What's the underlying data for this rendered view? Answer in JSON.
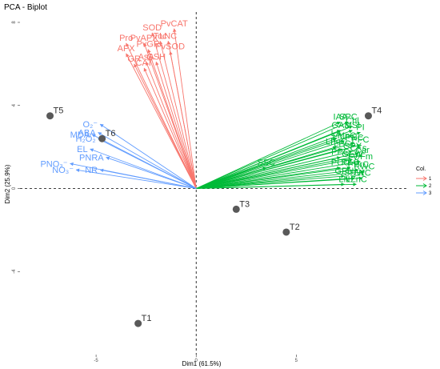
{
  "chart_data": {
    "type": "scatter",
    "title": "PCA - Biplot",
    "xlabel": "Dim1 (61.5%)",
    "ylabel": "Dim2 (25.9%)",
    "xlim": [
      -8.8,
      10.5
    ],
    "ylim": [
      -8.0,
      8.5
    ],
    "x_ticks": [
      -5,
      0,
      5
    ],
    "x_tick_labels": [
      "-5",
      "0",
      "5"
    ],
    "y_ticks": [
      -4,
      0,
      4,
      8
    ],
    "y_tick_labels": [
      "-4",
      "0",
      "4",
      "8"
    ],
    "grid": false,
    "legend_position": "right",
    "legend_title": "Col.",
    "legend": [
      {
        "label": "1",
        "color": "#f8766d"
      },
      {
        "label": "2",
        "color": "#00ba38"
      },
      {
        "label": "3",
        "color": "#619cff"
      }
    ],
    "individuals": [
      {
        "name": "T1",
        "x": -2.9,
        "y": -6.5
      },
      {
        "name": "T2",
        "x": 4.5,
        "y": -2.1
      },
      {
        "name": "T3",
        "x": 2.0,
        "y": -1.0
      },
      {
        "name": "T4",
        "x": 8.6,
        "y": 3.5
      },
      {
        "name": "T5",
        "x": -7.3,
        "y": 3.5
      },
      {
        "name": "T6",
        "x": -4.7,
        "y": 2.4
      }
    ],
    "variables": [
      {
        "name": "SOD",
        "group": "1",
        "x": -2.2,
        "y": 7.5
      },
      {
        "name": "PvCAT",
        "group": "1",
        "x": -1.1,
        "y": 7.7
      },
      {
        "name": "Pro",
        "group": "1",
        "x": -3.5,
        "y": 7.0
      },
      {
        "name": "PvAPX",
        "group": "1",
        "x": -2.6,
        "y": 7.0
      },
      {
        "name": "Toc",
        "group": "1",
        "x": -1.8,
        "y": 7.1
      },
      {
        "name": "LNC",
        "group": "1",
        "x": -1.4,
        "y": 7.1
      },
      {
        "name": "APX",
        "group": "1",
        "x": -3.5,
        "y": 6.5
      },
      {
        "name": "PvGR",
        "group": "1",
        "x": -2.4,
        "y": 6.7
      },
      {
        "name": "PvSOD",
        "group": "1",
        "x": -1.3,
        "y": 6.6
      },
      {
        "name": "GR",
        "group": "1",
        "x": -3.1,
        "y": 6.0
      },
      {
        "name": "AsA",
        "group": "1",
        "x": -2.5,
        "y": 6.1
      },
      {
        "name": "GSH",
        "group": "1",
        "x": -2.0,
        "y": 6.1
      },
      {
        "name": "CAT",
        "group": "1",
        "x": -2.6,
        "y": 5.8
      },
      {
        "name": "IAA",
        "group": "2",
        "x": 7.2,
        "y": 3.2
      },
      {
        "name": "SPC",
        "group": "2",
        "x": 7.6,
        "y": 3.2
      },
      {
        "name": "Chl",
        "group": "2",
        "x": 7.8,
        "y": 3.0
      },
      {
        "name": "GA3",
        "group": "2",
        "x": 7.2,
        "y": 2.8
      },
      {
        "name": "MSI",
        "group": "2",
        "x": 7.8,
        "y": 2.8
      },
      {
        "name": "PI",
        "group": "2",
        "x": 8.2,
        "y": 2.7
      },
      {
        "name": "LA",
        "group": "2",
        "x": 7.0,
        "y": 2.4
      },
      {
        "name": "LMnC",
        "group": "2",
        "x": 7.4,
        "y": 2.3
      },
      {
        "name": "PNC",
        "group": "2",
        "x": 7.9,
        "y": 2.2
      },
      {
        "name": "PFC",
        "group": "2",
        "x": 8.2,
        "y": 2.1
      },
      {
        "name": "LFeC",
        "group": "2",
        "x": 7.0,
        "y": 2.0
      },
      {
        "name": "LPC",
        "group": "2",
        "x": 7.3,
        "y": 1.9
      },
      {
        "name": "GPY",
        "group": "2",
        "x": 7.8,
        "y": 1.8
      },
      {
        "name": "CKs",
        "group": "2",
        "x": 8.1,
        "y": 1.7
      },
      {
        "name": "Car",
        "group": "2",
        "x": 8.3,
        "y": 1.6
      },
      {
        "name": "PPC",
        "group": "2",
        "x": 7.2,
        "y": 1.5
      },
      {
        "name": "GEW",
        "group": "2",
        "x": 7.8,
        "y": 1.4
      },
      {
        "name": "Fv/Fm",
        "group": "2",
        "x": 8.2,
        "y": 1.3
      },
      {
        "name": "SSC",
        "group": "2",
        "x": 3.5,
        "y": 1.0
      },
      {
        "name": "PCC",
        "group": "2",
        "x": 7.2,
        "y": 1.0
      },
      {
        "name": "PKC",
        "group": "2",
        "x": 7.7,
        "y": 1.0
      },
      {
        "name": "PPrC",
        "group": "2",
        "x": 8.1,
        "y": 0.9
      },
      {
        "name": "RWC",
        "group": "2",
        "x": 8.4,
        "y": 0.8
      },
      {
        "name": "GPN",
        "group": "2",
        "x": 7.4,
        "y": 0.6
      },
      {
        "name": "SDW",
        "group": "2",
        "x": 7.9,
        "y": 0.5
      },
      {
        "name": "LKC",
        "group": "2",
        "x": 8.3,
        "y": 0.5
      },
      {
        "name": "LN",
        "group": "2",
        "x": 7.4,
        "y": 0.2
      },
      {
        "name": "LZnC",
        "group": "2",
        "x": 8.0,
        "y": 0.2
      },
      {
        "name": "O₂⁻",
        "group": "3",
        "x": -4.8,
        "y": 3.1
      },
      {
        "name": "ABA",
        "group": "3",
        "x": -4.9,
        "y": 2.7
      },
      {
        "name": "MDA",
        "group": "3",
        "x": -5.2,
        "y": 2.6
      },
      {
        "name": "H₂O₂",
        "group": "3",
        "x": -4.9,
        "y": 2.4
      },
      {
        "name": "EL",
        "group": "3",
        "x": -5.3,
        "y": 1.9
      },
      {
        "name": "PNRA",
        "group": "3",
        "x": -4.5,
        "y": 1.5
      },
      {
        "name": "PNO₃⁻",
        "group": "3",
        "x": -6.3,
        "y": 1.2
      },
      {
        "name": "NO₃⁻",
        "group": "3",
        "x": -6.0,
        "y": 0.9
      },
      {
        "name": "NR",
        "group": "3",
        "x": -4.8,
        "y": 0.9
      }
    ]
  }
}
